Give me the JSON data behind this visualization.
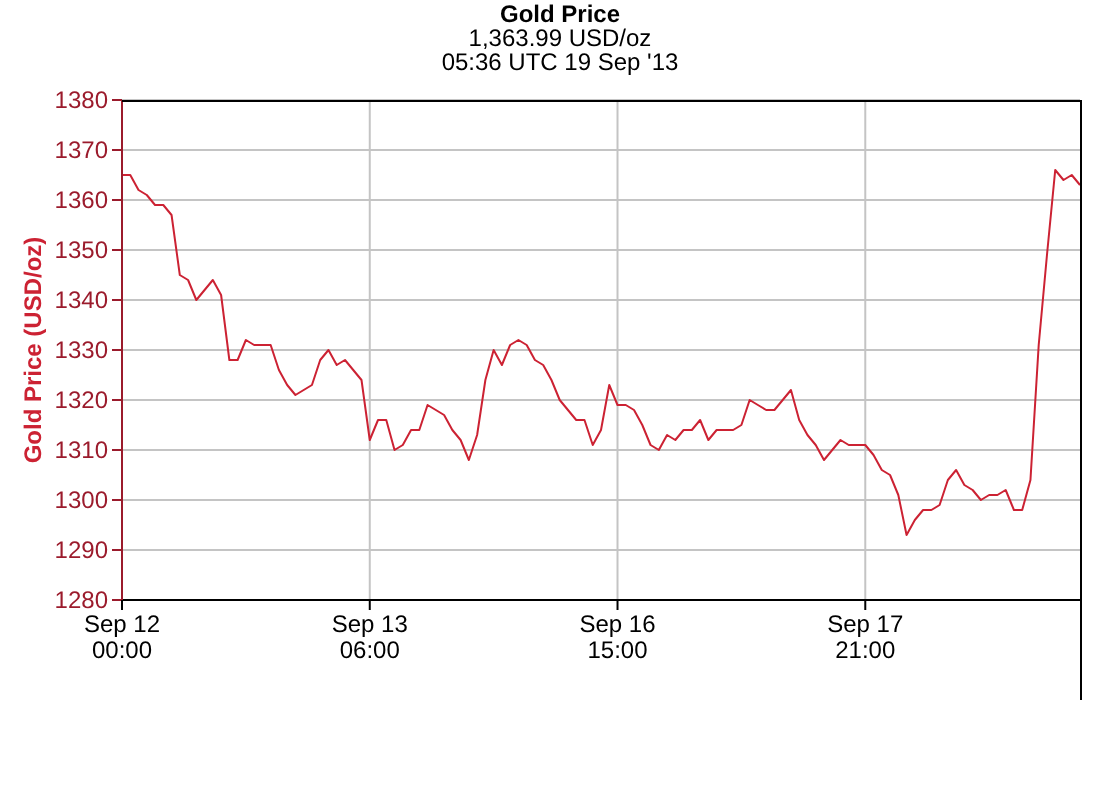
{
  "chart_data": {
    "type": "line",
    "title": "Gold Price",
    "subtitle": "1,363.99 USD/oz\n05:36 UTC 19 Sep '13",
    "ylabel": "Gold Price (USD/oz)",
    "categories": [
      "Sep 12\n00:00",
      null,
      null,
      null,
      null,
      null,
      null,
      null,
      null,
      null,
      null,
      null,
      null,
      null,
      null,
      null,
      null,
      null,
      null,
      null,
      null,
      null,
      null,
      null,
      null,
      null,
      null,
      null,
      null,
      null,
      "Sep 13\n06:00",
      null,
      null,
      null,
      null,
      null,
      null,
      null,
      null,
      null,
      null,
      null,
      null,
      null,
      null,
      null,
      null,
      null,
      null,
      null,
      null,
      null,
      null,
      null,
      null,
      null,
      null,
      null,
      null,
      null,
      "Sep 16\n15:00",
      null,
      null,
      null,
      null,
      null,
      null,
      null,
      null,
      null,
      null,
      null,
      null,
      null,
      null,
      null,
      null,
      null,
      null,
      null,
      null,
      null,
      null,
      null,
      null,
      null,
      null,
      null,
      null,
      null,
      "Sep 17\n21:00",
      null,
      null,
      null,
      null,
      null,
      null,
      null,
      null,
      null,
      null,
      null,
      null,
      null,
      null,
      null,
      null,
      null,
      null,
      null,
      null,
      null,
      null,
      null,
      null,
      null,
      null
    ],
    "values": [
      1365,
      1365,
      1362,
      1361,
      1359,
      1359,
      1357,
      1345,
      1344,
      1340,
      1342,
      1344,
      1341,
      1328,
      1328,
      1332,
      1331,
      1331,
      1331,
      1326,
      1323,
      1321,
      1322,
      1323,
      1328,
      1330,
      1327,
      1328,
      1326,
      1324,
      1312,
      1316,
      1316,
      1310,
      1311,
      1314,
      1314,
      1319,
      1318,
      1317,
      1314,
      1312,
      1308,
      1313,
      1324,
      1330,
      1327,
      1331,
      1332,
      1331,
      1328,
      1327,
      1324,
      1320,
      1318,
      1316,
      1316,
      1311,
      1314,
      1323,
      1319,
      1319,
      1318,
      1315,
      1311,
      1310,
      1313,
      1312,
      1314,
      1314,
      1316,
      1312,
      1314,
      1314,
      1314,
      1315,
      1320,
      1319,
      1318,
      1318,
      1320,
      1322,
      1316,
      1313,
      1311,
      1308,
      1310,
      1312,
      1311,
      1311,
      1311,
      1309,
      1306,
      1305,
      1301,
      1293,
      1296,
      1298,
      1298,
      1299,
      1304,
      1306,
      1303,
      1302,
      1300,
      1301,
      1301,
      1302,
      1298,
      1298,
      1304,
      1331,
      1349,
      1366,
      1364,
      1365,
      1363
    ],
    "color": "#cc2233",
    "ylim": [
      1280,
      1380
    ],
    "yticks": [
      1280,
      1290,
      1300,
      1310,
      1320,
      1330,
      1340,
      1350,
      1360,
      1370,
      1380
    ],
    "grid": true
  }
}
